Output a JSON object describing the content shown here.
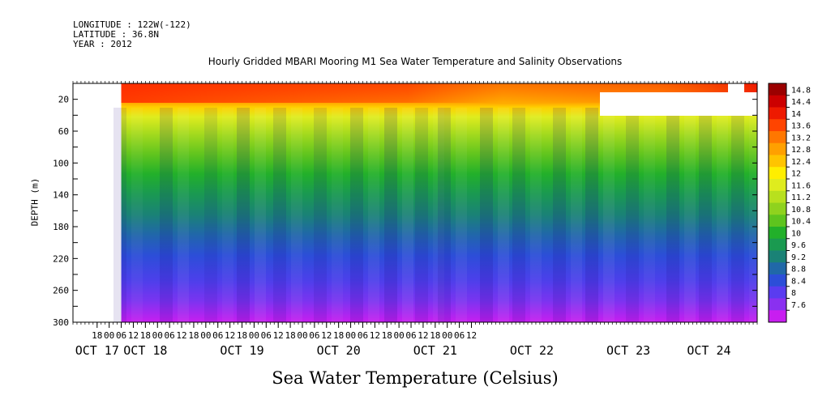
{
  "header": {
    "longitude": "LONGITUDE : 122W(-122)",
    "latitude": "LATITUDE : 36.8N",
    "year": "YEAR : 2012"
  },
  "chart_data": {
    "type": "heatmap",
    "title": "Hourly Gridded MBARI Mooring M1 Sea Water Temperature and Salinity Observations",
    "xlabel": "Sea Water Temperature (Celsius)",
    "ylabel": "DEPTH (m)",
    "x_axis": {
      "start_hour": 18,
      "hour_ticks": [
        "18",
        "00",
        "06",
        "12",
        "18",
        "00",
        "06",
        "12",
        "18",
        "00",
        "06",
        "12",
        "18",
        "00",
        "06",
        "12",
        "18",
        "00",
        "06",
        "12",
        "18",
        "00",
        "06",
        "12",
        "18",
        "00",
        "06",
        "12",
        "18",
        "00",
        "06",
        "12"
      ],
      "date_labels": [
        {
          "label": "OCT 17",
          "hour": 12
        },
        {
          "label": "OCT 18",
          "hour": 36
        },
        {
          "label": "OCT 19",
          "hour": 84
        },
        {
          "label": "OCT 20",
          "hour": 132
        },
        {
          "label": "OCT 21",
          "hour": 180
        },
        {
          "label": "OCT 22",
          "hour": 228
        },
        {
          "label": "OCT 23",
          "hour": 276
        },
        {
          "label": "OCT 24",
          "hour": 316
        }
      ],
      "data_start_hour": 24,
      "xlim_hours": [
        0,
        340
      ]
    },
    "y_axis": {
      "ticks": [
        20,
        60,
        100,
        140,
        180,
        220,
        260,
        300
      ],
      "ylim": [
        0,
        300
      ],
      "inverted": true
    },
    "colorbar": {
      "levels": [
        "14.8",
        "14.4",
        "14",
        "13.6",
        "13.2",
        "12.8",
        "12.4",
        "12",
        "11.6",
        "11.2",
        "10.8",
        "10.4",
        "10",
        "9.6",
        "9.2",
        "8.8",
        "8.4",
        "8",
        "7.6"
      ],
      "colors": [
        "#9b0000",
        "#cc0000",
        "#ee1a00",
        "#ff4400",
        "#ff7700",
        "#ffa000",
        "#ffc400",
        "#ffee00",
        "#dfec1e",
        "#b8e01e",
        "#8fd21e",
        "#5ec41e",
        "#22b02a",
        "#1a9a50",
        "#1a8276",
        "#2068a8",
        "#2c4ed8",
        "#5a3cf0",
        "#8a30f0",
        "#c81ef0"
      ]
    },
    "data_description": "temperature decreases with depth: ~14-15 at surface, ~12 near 40 m, ~10.5 near 100 m, ~9.5 near 140 m, ~8.5 at 220 m, ~7.8 at 300 m"
  }
}
